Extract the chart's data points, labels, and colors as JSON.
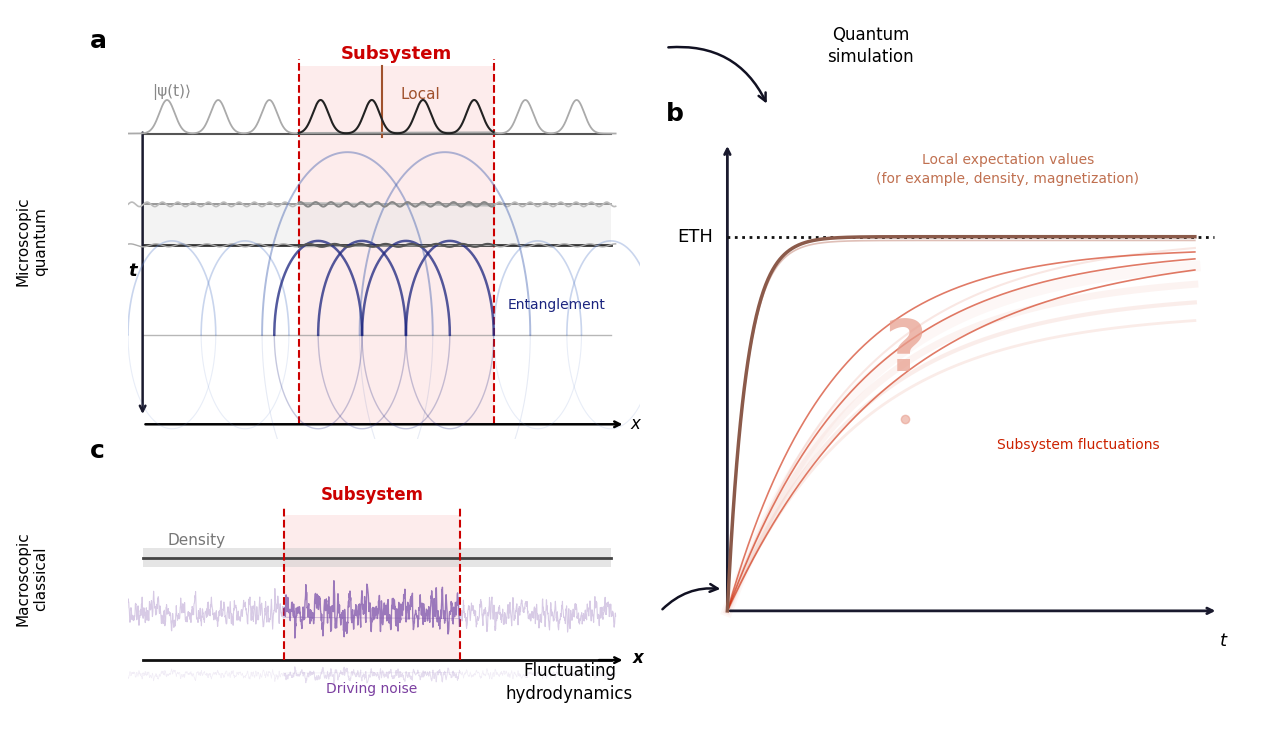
{
  "bg_color": "#ffffff",
  "panel_a": {
    "label": "a",
    "ylabel": "Microscopic\nquantum",
    "psi_label": "|ψ(t)⟩",
    "t_label": "t",
    "x_label": "x",
    "subsystem_label": "Subsystem",
    "local_label": "Local",
    "entanglement_label": "Entanglement",
    "subsystem_color": "#cc0000",
    "local_color": "#a0522d",
    "subsystem_bg": "#fde8e8",
    "entanglement_color": "#1a237e",
    "wave_color_inside": "#333333",
    "wave_color_outside": "#aaaaaa"
  },
  "panel_b": {
    "label": "b",
    "eth_label": "ETH",
    "local_label": "Local expectation values\n(for example, density, magnetization)",
    "subsystem_label": "Subsystem fluctuations",
    "question_mark": "?",
    "t_label": "t",
    "local_curve_color": "#8B5A4A",
    "sub_curve_color": "#cc2200",
    "sub_fade_color": "#e8a090",
    "dotted_color": "#222222",
    "arrow_color": "#1a1a2e"
  },
  "panel_c": {
    "label": "c",
    "ylabel": "Macroscopic\nclassical",
    "x_label": "x",
    "subsystem_label": "Subsystem",
    "density_label": "Density",
    "noise_label": "Driving noise",
    "subsystem_color": "#cc0000",
    "subsystem_bg": "#fde8e8",
    "density_color": "#666666",
    "noise_color": "#7B52AB"
  },
  "quantum_sim_label": "Quantum\nsimulation",
  "fluct_hydro_label": "Fluctuating\nhydrodynamics",
  "arrow_color": "#111122"
}
